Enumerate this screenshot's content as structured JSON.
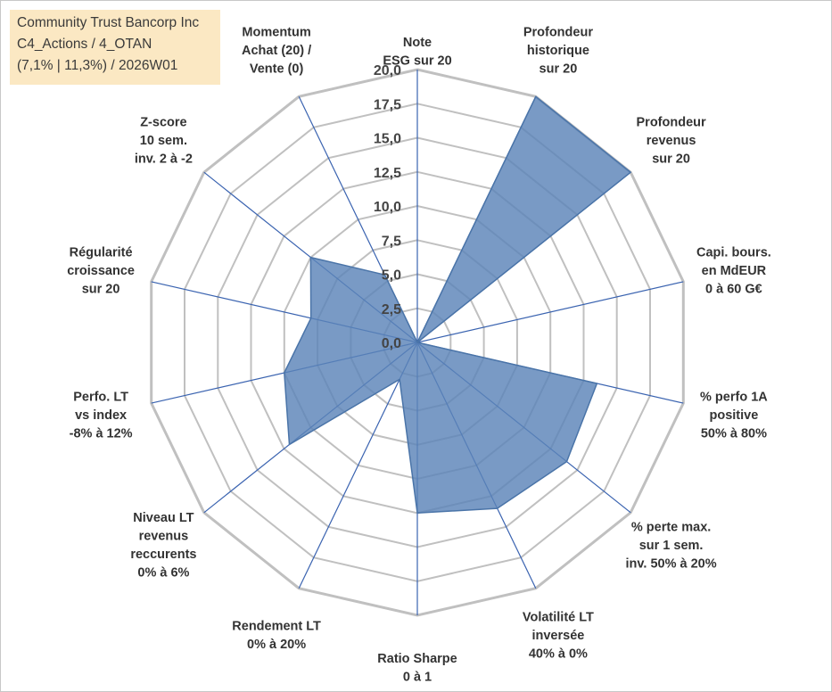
{
  "info": {
    "company": "Community Trust Bancorp Inc",
    "line2": "C4_Actions / 4_OTAN",
    "line3": "(7,1% | 11,3%) / 2026W01"
  },
  "colors": {
    "fill": "#5b84b8",
    "stroke": "#4a74a8",
    "grid": "#c0c0c0",
    "spoke": "#3a63b0",
    "infoBox": "#fbe8c3"
  },
  "chart_data": {
    "type": "radar",
    "title": "",
    "rmin": 0,
    "rmax": 20,
    "ticks": [
      "0,0",
      "2,5",
      "5,0",
      "7,5",
      "10,0",
      "12,5",
      "15,0",
      "17,5",
      "20,0"
    ],
    "axes": [
      {
        "lines": [
          "Note",
          "ESG sur 20"
        ],
        "value": 0
      },
      {
        "lines": [
          "Profondeur",
          "historique",
          "sur 20"
        ],
        "value": 20
      },
      {
        "lines": [
          "Profondeur",
          "revenus",
          "sur 20"
        ],
        "value": 20
      },
      {
        "lines": [
          "Capi. bours.",
          "en MdEUR",
          "0 à 60 G€"
        ],
        "value": 0
      },
      {
        "lines": [
          "% perfo 1A",
          "positive",
          "50% à 80%"
        ],
        "value": 13.5
      },
      {
        "lines": [
          "% perte max.",
          "sur 1 sem.",
          "inv. 50% à 20%"
        ],
        "value": 14
      },
      {
        "lines": [
          "Volatilité LT",
          "inversée",
          "40% à 0%"
        ],
        "value": 13.5
      },
      {
        "lines": [
          "Ratio Sharpe",
          "0 à 1"
        ],
        "value": 12.5
      },
      {
        "lines": [
          "Rendement LT",
          "0% à 20%"
        ],
        "value": 3
      },
      {
        "lines": [
          "Niveau LT",
          "revenus",
          "reccurents",
          "0% à 6%"
        ],
        "value": 12
      },
      {
        "lines": [
          "Perfo. LT",
          "vs index",
          "-8% à 12%"
        ],
        "value": 10
      },
      {
        "lines": [
          "Régularité",
          "croissance",
          "sur 20"
        ],
        "value": 8
      },
      {
        "lines": [
          "Z-score",
          "10 sem.",
          "inv. 2 à -2"
        ],
        "value": 10
      },
      {
        "lines": [
          "Momentum",
          "Achat (20) /",
          "Vente (0)"
        ],
        "value": 5.5
      }
    ]
  }
}
